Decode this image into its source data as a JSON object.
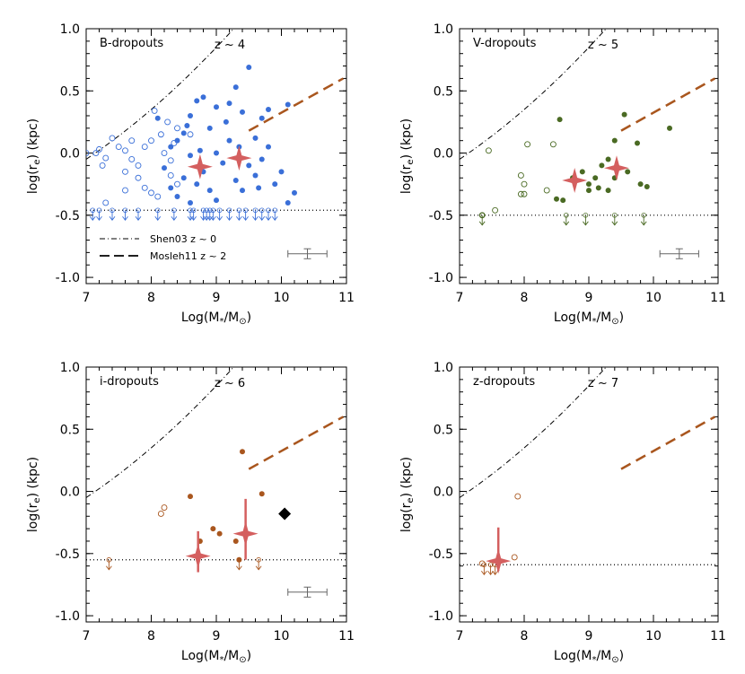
{
  "colors": {
    "blue": "#3a6fd8",
    "green": "#4a6a23",
    "brown": "#a9561e",
    "pink": "#d45f5f",
    "dashed": "#a9561e",
    "ref": "#000000",
    "errorbar": "#666666",
    "diamond": "#000000"
  },
  "chart_data": [
    {
      "type": "scatter",
      "panel_label": "B-dropouts",
      "redshift_label": "z ~ 4",
      "xlabel": "Log(M*/M⊙)",
      "ylabel": "log(re) (kpc)",
      "xlim": [
        7,
        11
      ],
      "ylim": [
        -1.05,
        1.0
      ],
      "xticks": [
        "7",
        "8",
        "9",
        "10",
        "11"
      ],
      "yticks": [
        "1.0",
        "0.5",
        "0.0",
        "-0.5",
        "-1.0"
      ],
      "legend": [
        {
          "label": "Shen03   z ~ 0",
          "style": "dash-dot"
        },
        {
          "label": "Mosleh11   z ~ 2",
          "style": "dashed"
        }
      ],
      "limit_level": -0.46,
      "filled_color": "blue",
      "filled": [
        [
          8.1,
          0.28
        ],
        [
          8.6,
          0.3
        ],
        [
          8.5,
          0.16
        ],
        [
          8.7,
          0.42
        ],
        [
          8.8,
          0.45
        ],
        [
          9.0,
          0.37
        ],
        [
          9.2,
          0.4
        ],
        [
          9.3,
          0.53
        ],
        [
          9.5,
          0.69
        ],
        [
          8.4,
          0.1
        ],
        [
          8.9,
          0.2
        ],
        [
          9.4,
          0.33
        ],
        [
          9.7,
          0.28
        ],
        [
          9.6,
          0.12
        ],
        [
          9.8,
          0.35
        ],
        [
          10.1,
          0.39
        ],
        [
          9.0,
          0.0
        ],
        [
          8.3,
          0.05
        ],
        [
          8.6,
          -0.02
        ],
        [
          9.1,
          -0.08
        ],
        [
          9.5,
          -0.1
        ],
        [
          9.8,
          0.05
        ],
        [
          8.2,
          -0.12
        ],
        [
          8.5,
          -0.2
        ],
        [
          8.7,
          -0.25
        ],
        [
          8.9,
          -0.3
        ],
        [
          9.0,
          -0.38
        ],
        [
          9.3,
          -0.22
        ],
        [
          9.6,
          -0.18
        ],
        [
          9.9,
          -0.25
        ],
        [
          10.2,
          -0.32
        ],
        [
          8.4,
          -0.35
        ],
        [
          8.6,
          -0.4
        ],
        [
          8.8,
          -0.15
        ],
        [
          9.2,
          0.1
        ],
        [
          9.7,
          -0.05
        ],
        [
          10.0,
          -0.15
        ],
        [
          10.1,
          -0.4
        ],
        [
          8.3,
          -0.28
        ],
        [
          9.4,
          -0.3
        ],
        [
          8.55,
          0.22
        ],
        [
          9.15,
          0.25
        ],
        [
          9.35,
          0.05
        ],
        [
          8.75,
          0.02
        ],
        [
          9.65,
          -0.28
        ]
      ],
      "open": [
        [
          7.0,
          0.0
        ],
        [
          7.15,
          0.0
        ],
        [
          7.2,
          0.03
        ],
        [
          7.3,
          -0.04
        ],
        [
          7.4,
          0.12
        ],
        [
          7.5,
          0.05
        ],
        [
          7.6,
          0.02
        ],
        [
          7.7,
          -0.05
        ],
        [
          7.8,
          -0.1
        ],
        [
          7.9,
          0.05
        ],
        [
          8.0,
          0.1
        ],
        [
          8.05,
          0.34
        ],
        [
          8.15,
          0.15
        ],
        [
          8.2,
          0.0
        ],
        [
          8.3,
          -0.06
        ],
        [
          8.35,
          0.08
        ],
        [
          8.4,
          0.2
        ],
        [
          7.6,
          -0.15
        ],
        [
          7.8,
          -0.2
        ],
        [
          7.9,
          -0.28
        ],
        [
          8.0,
          -0.32
        ],
        [
          8.1,
          -0.35
        ],
        [
          7.3,
          -0.4
        ],
        [
          7.6,
          -0.3
        ],
        [
          8.3,
          -0.18
        ],
        [
          8.4,
          -0.25
        ],
        [
          8.6,
          0.15
        ],
        [
          7.25,
          -0.1
        ],
        [
          8.25,
          0.25
        ],
        [
          7.7,
          0.1
        ]
      ],
      "limits": [
        7.1,
        7.2,
        7.4,
        7.6,
        7.8,
        8.1,
        8.35,
        8.6,
        8.65,
        8.8,
        8.85,
        8.9,
        8.95,
        9.05,
        9.2,
        9.35,
        9.45,
        9.6,
        9.7,
        9.8,
        9.9
      ],
      "stars": [
        {
          "x": 8.75,
          "y": -0.11,
          "ylo": -0.11,
          "yhi": -0.11
        },
        {
          "x": 9.35,
          "y": -0.04,
          "ylo": -0.04,
          "yhi": -0.04
        }
      ],
      "errbar": {
        "x": 10.4,
        "y": -0.81,
        "xerr": 0.3,
        "yerr": 0.04
      }
    },
    {
      "type": "scatter",
      "panel_label": "V-dropouts",
      "redshift_label": "z ~ 5",
      "xlabel": "Log(M*/M⊙)",
      "ylabel": "log(re) (kpc)",
      "xlim": [
        7,
        11
      ],
      "ylim": [
        -1.05,
        1.0
      ],
      "xticks": [
        "7",
        "8",
        "9",
        "10",
        "11"
      ],
      "yticks": [
        "1.0",
        "0.5",
        "0.0",
        "-0.5",
        "-1.0"
      ],
      "legend": [],
      "limit_level": -0.5,
      "filled_color": "green",
      "filled": [
        [
          8.55,
          0.27
        ],
        [
          9.4,
          0.1
        ],
        [
          9.55,
          0.31
        ],
        [
          9.75,
          0.08
        ],
        [
          10.25,
          0.2
        ],
        [
          9.2,
          -0.1
        ],
        [
          9.3,
          -0.05
        ],
        [
          9.1,
          -0.2
        ],
        [
          9.0,
          -0.25
        ],
        [
          8.9,
          -0.15
        ],
        [
          8.6,
          -0.38
        ],
        [
          9.3,
          -0.3
        ],
        [
          9.6,
          -0.15
        ],
        [
          9.8,
          -0.25
        ],
        [
          9.9,
          -0.27
        ],
        [
          8.5,
          -0.37
        ],
        [
          9.0,
          -0.3
        ],
        [
          9.4,
          -0.2
        ],
        [
          9.15,
          -0.28
        ],
        [
          8.75,
          -0.2
        ]
      ],
      "open": [
        [
          7.45,
          0.02
        ],
        [
          7.95,
          -0.18
        ],
        [
          8.0,
          -0.25
        ],
        [
          8.05,
          0.07
        ],
        [
          8.35,
          -0.3
        ],
        [
          8.45,
          0.07
        ],
        [
          7.95,
          -0.33
        ],
        [
          8.0,
          -0.33
        ],
        [
          7.55,
          -0.46
        ],
        [
          7.35,
          -0.5
        ]
      ],
      "limits": [
        7.35,
        8.65,
        8.95,
        9.4,
        9.85
      ],
      "stars": [
        {
          "x": 8.78,
          "y": -0.22,
          "ylo": -0.22,
          "yhi": -0.22
        },
        {
          "x": 9.43,
          "y": -0.12,
          "ylo": -0.12,
          "yhi": -0.12
        }
      ],
      "errbar": {
        "x": 10.4,
        "y": -0.81,
        "xerr": 0.3,
        "yerr": 0.04
      }
    },
    {
      "type": "scatter",
      "panel_label": "i-dropouts",
      "redshift_label": "z ~ 6",
      "xlabel": "Log(M*/M⊙)",
      "ylabel": "log(re) (kpc)",
      "xlim": [
        7,
        11
      ],
      "ylim": [
        -1.05,
        1.0
      ],
      "xticks": [
        "7",
        "8",
        "9",
        "10",
        "11"
      ],
      "yticks": [
        "1.0",
        "0.5",
        "0.0",
        "-0.5",
        "-1.0"
      ],
      "legend": [],
      "limit_level": -0.55,
      "filled_color": "brown",
      "filled": [
        [
          8.6,
          -0.04
        ],
        [
          9.4,
          0.32
        ],
        [
          9.7,
          -0.02
        ],
        [
          8.95,
          -0.3
        ],
        [
          9.05,
          -0.34
        ],
        [
          8.75,
          -0.4
        ],
        [
          9.3,
          -0.4
        ],
        [
          9.35,
          -0.55
        ]
      ],
      "open": [
        [
          8.15,
          -0.18
        ],
        [
          8.2,
          -0.13
        ]
      ],
      "limits": [
        7.35,
        9.35,
        9.65
      ],
      "stars": [
        {
          "x": 8.72,
          "y": -0.52,
          "ylo": -0.65,
          "yhi": -0.32
        },
        {
          "x": 9.45,
          "y": -0.34,
          "ylo": -0.55,
          "yhi": -0.06
        }
      ],
      "diamond": {
        "x": 10.05,
        "y": -0.18
      },
      "errbar": {
        "x": 10.4,
        "y": -0.81,
        "xerr": 0.3,
        "yerr": 0.04
      }
    },
    {
      "type": "scatter",
      "panel_label": "z-dropouts",
      "redshift_label": "z ~ 7",
      "xlabel": "Log(M*/M⊙)",
      "ylabel": "log(re) (kpc)",
      "xlim": [
        7,
        11
      ],
      "ylim": [
        -1.05,
        1.0
      ],
      "xticks": [
        "7",
        "8",
        "9",
        "10",
        "11"
      ],
      "yticks": [
        "1.0",
        "0.5",
        "0.0",
        "-0.5",
        "-1.0"
      ],
      "legend": [],
      "limit_level": -0.59,
      "filled_color": "brown",
      "filled": [],
      "open": [
        [
          7.9,
          -0.04
        ],
        [
          7.85,
          -0.53
        ],
        [
          7.35,
          -0.58
        ]
      ],
      "limits": [
        7.38,
        7.48,
        7.55
      ],
      "stars": [
        {
          "x": 7.6,
          "y": -0.56,
          "ylo": -0.64,
          "yhi": -0.29
        }
      ],
      "errbar": null
    }
  ]
}
